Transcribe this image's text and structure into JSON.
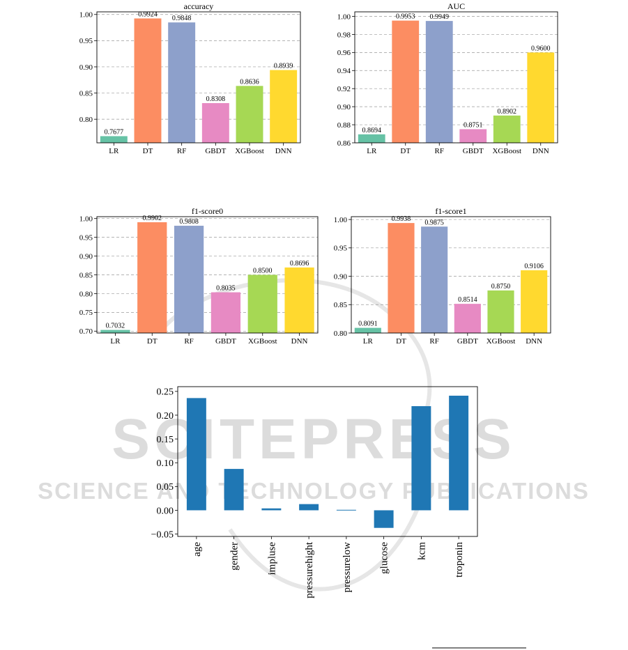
{
  "watermark": {
    "main": "SCITEPRESS",
    "sub": "SCIENCE AND TECHNOLOGY PUBLICATIONS",
    "color": "#cfcfcf"
  },
  "palette": {
    "LR": "#66c2a5",
    "DT": "#fc8d62",
    "RF": "#8da0cb",
    "GBDT": "#e78ac3",
    "XGBoost": "#a6d854",
    "DNN": "#ffd92f",
    "importance": "#1f77b4"
  },
  "chart_data": [
    {
      "type": "bar",
      "title": "accuracy",
      "categories": [
        "LR",
        "DT",
        "RF",
        "GBDT",
        "XGBoost",
        "DNN"
      ],
      "values": [
        0.7677,
        0.9924,
        0.9848,
        0.8308,
        0.8636,
        0.8939
      ],
      "value_labels": [
        "0.7677",
        "0.9924",
        "0.9848",
        "0.8308",
        "0.8636",
        "0.8939"
      ],
      "ylim": [
        0.755,
        1.005
      ],
      "yticks": [
        0.8,
        0.85,
        0.9,
        0.95,
        1.0
      ],
      "ytick_labels": [
        "0.80",
        "0.85",
        "0.90",
        "0.95",
        "1.00"
      ],
      "grid": true
    },
    {
      "type": "bar",
      "title": "AUC",
      "categories": [
        "LR",
        "DT",
        "RF",
        "GBDT",
        "XGBoost",
        "DNN"
      ],
      "values": [
        0.8694,
        0.9953,
        0.9949,
        0.8751,
        0.8902,
        0.96
      ],
      "value_labels": [
        "0.8694",
        "0.9953",
        "0.9949",
        "0.8751",
        "0.8902",
        "0.9600"
      ],
      "ylim": [
        0.86,
        1.005
      ],
      "yticks": [
        0.86,
        0.88,
        0.9,
        0.92,
        0.94,
        0.96,
        0.98,
        1.0
      ],
      "ytick_labels": [
        "0.86",
        "0.88",
        "0.90",
        "0.92",
        "0.94",
        "0.96",
        "0.98",
        "1.00"
      ],
      "grid": true
    },
    {
      "type": "bar",
      "title": "f1-score0",
      "categories": [
        "LR",
        "DT",
        "RF",
        "GBDT",
        "XGBoost",
        "DNN"
      ],
      "values": [
        0.7032,
        0.9902,
        0.9808,
        0.8035,
        0.85,
        0.8696
      ],
      "value_labels": [
        "0.7032",
        "0.9902",
        "0.9808",
        "0.8035",
        "0.8500",
        "0.8696"
      ],
      "ylim": [
        0.695,
        1.005
      ],
      "yticks": [
        0.7,
        0.75,
        0.8,
        0.85,
        0.9,
        0.95,
        1.0
      ],
      "ytick_labels": [
        "0.70",
        "0.75",
        "0.80",
        "0.85",
        "0.90",
        "0.95",
        "1.00"
      ],
      "grid": true
    },
    {
      "type": "bar",
      "title": "f1-score1",
      "categories": [
        "LR",
        "DT",
        "RF",
        "GBDT",
        "XGBoost",
        "DNN"
      ],
      "values": [
        0.8091,
        0.9938,
        0.9875,
        0.8514,
        0.875,
        0.9106
      ],
      "value_labels": [
        "0.8091",
        "0.9938",
        "0.9875",
        "0.8514",
        "0.8750",
        "0.9106"
      ],
      "ylim": [
        0.8,
        1.005
      ],
      "yticks": [
        0.8,
        0.85,
        0.9,
        0.95,
        1.0
      ],
      "ytick_labels": [
        "0.80",
        "0.85",
        "0.90",
        "0.95",
        "1.00"
      ],
      "grid": true
    },
    {
      "type": "bar",
      "title": "",
      "categories": [
        "age",
        "gender",
        "impluse",
        "pressurehight",
        "pressurelow",
        "glucose",
        "kcm",
        "troponin"
      ],
      "values": [
        0.236,
        0.087,
        0.004,
        0.013,
        0.001,
        -0.037,
        0.219,
        0.241
      ],
      "ylim": [
        -0.055,
        0.26
      ],
      "yticks": [
        -0.05,
        0.0,
        0.05,
        0.1,
        0.15,
        0.2,
        0.25
      ],
      "ytick_labels": [
        "−0.05",
        "0.00",
        "0.05",
        "0.10",
        "0.15",
        "0.20",
        "0.25"
      ],
      "grid": false
    }
  ]
}
